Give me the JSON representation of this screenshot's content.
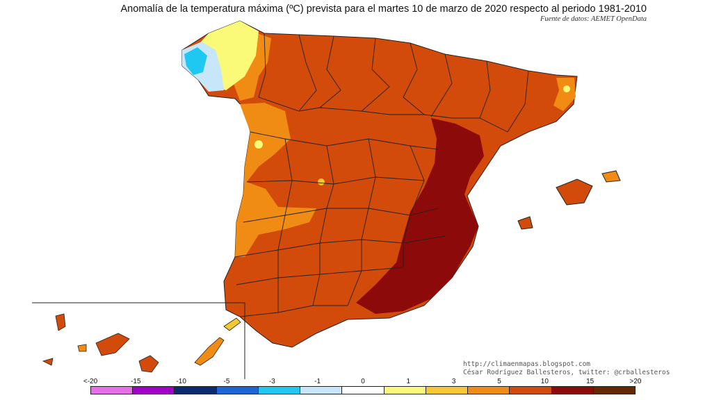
{
  "title": "Anomalía de la temperatura máxima (ºC) prevista para el martes 10 de marzo de 2020 respecto al periodo 1981-2010",
  "source": "Fuente de datos: AEMET OpenData",
  "credits": {
    "blog": "http://climaenmapas.blogspot.com",
    "author": "César Rodríguez Ballesteros, twitter: @crballesteros"
  },
  "legend": {
    "tick_labels": [
      "<-20",
      "-15",
      "-10",
      "-5",
      "-3",
      "-1",
      "0",
      "1",
      "3",
      "5",
      "10",
      "15",
      ">20"
    ],
    "colors": [
      "#e66ee6",
      "#a000c8",
      "#0a2c6e",
      "#1c64d8",
      "#1ec8f0",
      "#c8e6fa",
      "#ffffff",
      "#fafa78",
      "#f5c832",
      "#f08c14",
      "#d24b0a",
      "#8c0a0a",
      "#642800"
    ]
  },
  "regions": {
    "galicia_west": "Galicia",
    "peninsula": "Península Ibérica",
    "balearics": "Islas Baleares",
    "canaries": "Islas Canarias"
  }
}
